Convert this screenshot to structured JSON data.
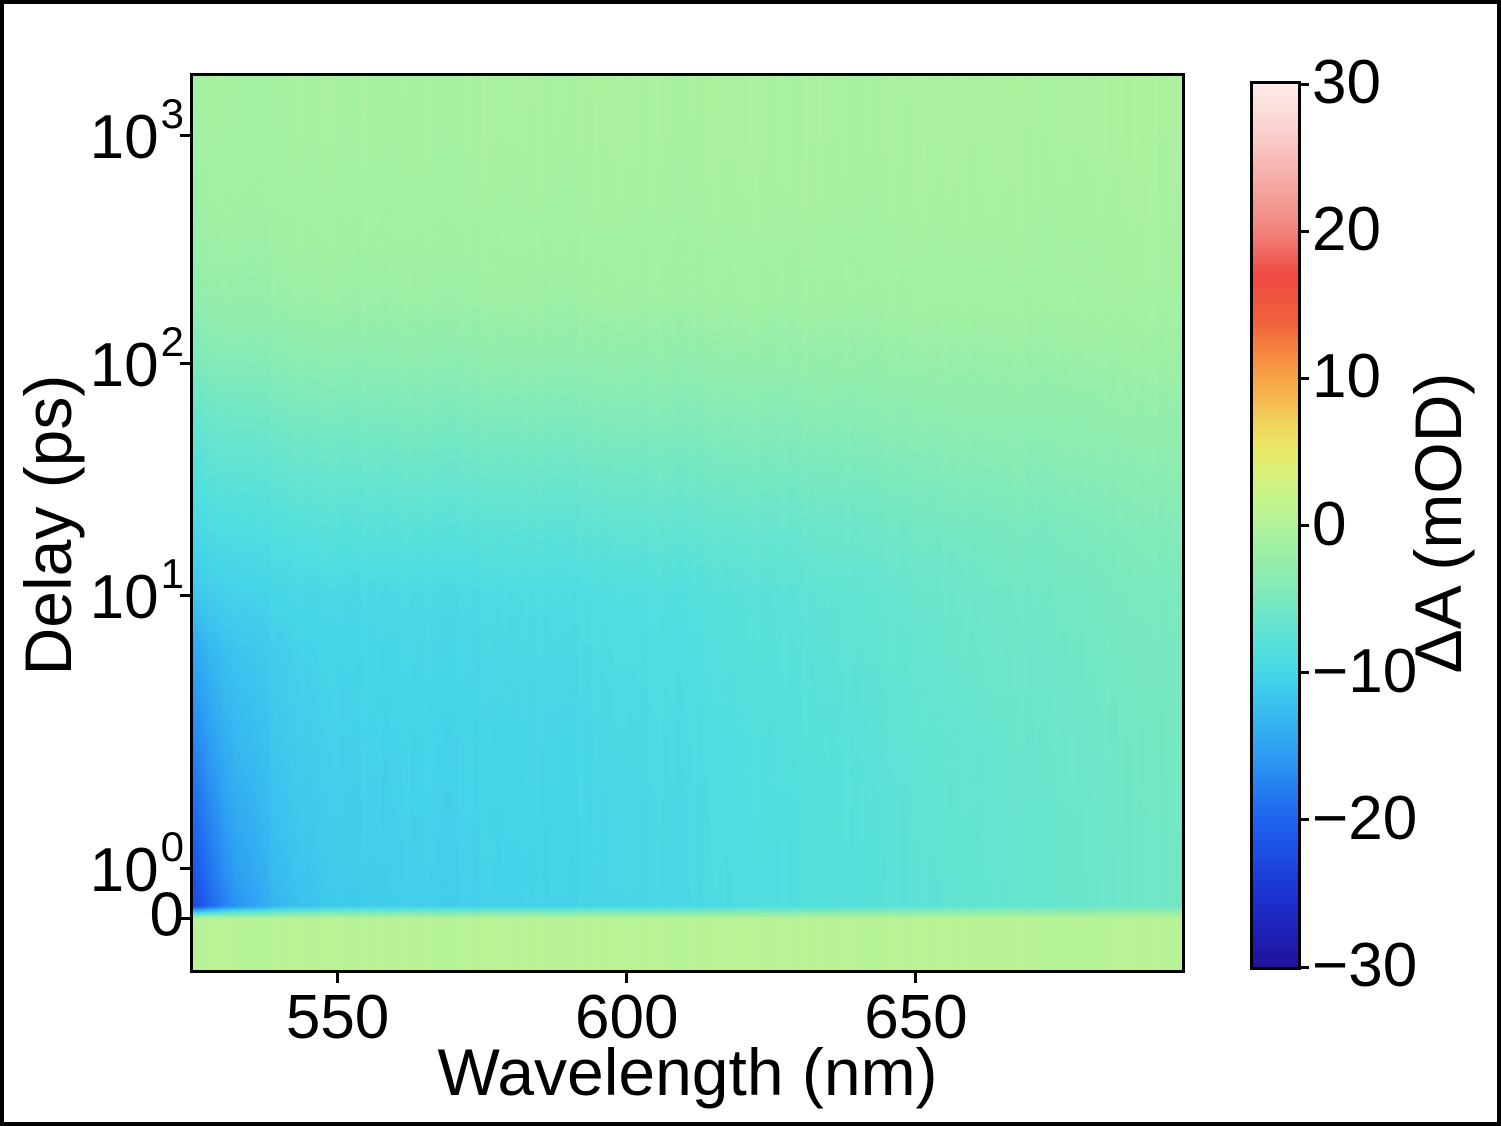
{
  "figure": {
    "kind": "transient-absorption heatmap figure",
    "background": "#ffffff",
    "frame_color": "#000000"
  },
  "axes": {
    "xlabel": "Wavelength (nm)",
    "ylabel": "Delay (ps)",
    "x_ticks": [
      {
        "label": "550",
        "nm": 550
      },
      {
        "label": "600",
        "nm": 600
      },
      {
        "label": "650",
        "nm": 650
      }
    ],
    "y_ticks": [
      {
        "base": "10",
        "exp": "3",
        "ps": 1000
      },
      {
        "base": "10",
        "exp": "2",
        "ps": 100
      },
      {
        "base": "10",
        "exp": "1",
        "ps": 10
      },
      {
        "base": "10",
        "exp": "0",
        "ps": 1
      },
      {
        "label": "0",
        "ps": 0
      }
    ]
  },
  "colorbar": {
    "label": "ΔA (mOD)",
    "min": -30,
    "max": 30,
    "ticks": [
      {
        "label": "30",
        "v": 30
      },
      {
        "label": "20",
        "v": 20
      },
      {
        "label": "10",
        "v": 10
      },
      {
        "label": "0",
        "v": 0
      },
      {
        "label": "−10",
        "v": -10
      },
      {
        "label": "−20",
        "v": -20
      },
      {
        "label": "−30",
        "v": -30
      }
    ]
  },
  "chart_data": {
    "type": "heatmap",
    "title": "",
    "xlabel": "Wavelength (nm)",
    "ylabel": "Delay (ps)",
    "colorbar_label": "ΔA (mOD)",
    "x_range_nm": [
      525,
      696
    ],
    "y_scale": "symlog",
    "y_linthresh_ps": 1,
    "y_range_ps": [
      -1,
      1860
    ],
    "value_range_mOD": [
      -30,
      30
    ],
    "x_wavelength_nm": [
      525,
      532,
      540,
      550,
      562,
      575,
      590,
      605,
      620,
      640,
      660,
      680,
      696
    ],
    "y_delay_ps": [
      -1,
      0,
      0.25,
      0.7,
      1.5,
      3,
      6,
      10,
      20,
      50,
      100,
      200,
      500,
      1000,
      1860
    ],
    "values_mOD": [
      [
        0.4,
        0.4,
        0.5,
        0.5,
        0.5,
        0.5,
        0.5,
        0.5,
        0.5,
        0.5,
        0.5,
        0.4,
        0.4
      ],
      [
        0.4,
        0.4,
        0.5,
        0.5,
        0.5,
        0.5,
        0.5,
        0.5,
        0.5,
        0.5,
        0.5,
        0.4,
        0.4
      ],
      [
        -22.5,
        -16.5,
        -13.0,
        -11.3,
        -10.8,
        -10.6,
        -10.2,
        -9.8,
        -9.0,
        -8.0,
        -7.0,
        -6.2,
        -5.6
      ],
      [
        -21.5,
        -15.8,
        -12.6,
        -11.1,
        -10.7,
        -10.5,
        -10.1,
        -9.7,
        -9.0,
        -8.0,
        -7.0,
        -6.2,
        -5.6
      ],
      [
        -19.5,
        -14.6,
        -12.0,
        -10.9,
        -10.5,
        -10.3,
        -10.0,
        -9.6,
        -8.9,
        -7.9,
        -6.9,
        -6.1,
        -5.5
      ],
      [
        -17.0,
        -13.2,
        -11.4,
        -10.5,
        -10.2,
        -10.1,
        -9.8,
        -9.4,
        -8.7,
        -7.7,
        -6.7,
        -5.9,
        -5.3
      ],
      [
        -14.5,
        -12.0,
        -10.8,
        -10.1,
        -9.8,
        -9.7,
        -9.4,
        -9.0,
        -8.3,
        -7.3,
        -6.3,
        -5.6,
        -5.0
      ],
      [
        -11.5,
        -10.5,
        -9.9,
        -9.6,
        -9.4,
        -9.3,
        -9.0,
        -8.6,
        -8.0,
        -7.0,
        -6.0,
        -5.3,
        -4.8
      ],
      [
        -9.4,
        -8.8,
        -8.3,
        -7.9,
        -7.7,
        -7.6,
        -7.4,
        -7.0,
        -6.6,
        -5.9,
        -5.2,
        -4.6,
        -4.2
      ],
      [
        -7.0,
        -6.3,
        -5.8,
        -5.4,
        -5.2,
        -5.1,
        -4.9,
        -4.7,
        -4.4,
        -4.0,
        -3.5,
        -3.2,
        -2.9
      ],
      [
        -4.6,
        -4.2,
        -3.8,
        -3.5,
        -3.4,
        -3.3,
        -3.2,
        -3.1,
        -2.9,
        -2.6,
        -2.4,
        -2.1,
        -1.9
      ],
      [
        -2.8,
        -2.5,
        -2.2,
        -2.0,
        -1.9,
        -1.8,
        -1.7,
        -1.6,
        -1.5,
        -1.4,
        -1.2,
        -1.1,
        -1.0
      ],
      [
        -1.7,
        -1.5,
        -1.3,
        -1.2,
        -1.1,
        -1.1,
        -1.0,
        -1.0,
        -0.9,
        -0.9,
        -0.8,
        -0.8,
        -0.7
      ],
      [
        -1.2,
        -1.1,
        -1.0,
        -0.9,
        -0.9,
        -0.8,
        -0.8,
        -0.8,
        -0.7,
        -0.7,
        -0.7,
        -0.6,
        -0.6
      ],
      [
        -1.0,
        -0.9,
        -0.9,
        -0.8,
        -0.8,
        -0.8,
        -0.7,
        -0.7,
        -0.7,
        -0.7,
        -0.6,
        -0.6,
        -0.5
      ]
    ],
    "colormap_stops": [
      [
        -30,
        "#20129b"
      ],
      [
        -25,
        "#1c33d4"
      ],
      [
        -20,
        "#1e64ef"
      ],
      [
        -15,
        "#2fa4f3"
      ],
      [
        -12,
        "#3cc3ee"
      ],
      [
        -10,
        "#47d6e8"
      ],
      [
        -8,
        "#58e1da"
      ],
      [
        -6,
        "#6ee6c9"
      ],
      [
        -4,
        "#86ebb5"
      ],
      [
        -2,
        "#9cefa6"
      ],
      [
        -1,
        "#a5f1a1"
      ],
      [
        0,
        "#b3f29b"
      ],
      [
        1,
        "#bdf392"
      ],
      [
        2,
        "#c7f489"
      ],
      [
        3.5,
        "#d8f07a"
      ],
      [
        5,
        "#e7e967"
      ],
      [
        6.5,
        "#eeda5d"
      ],
      [
        8,
        "#f4c254"
      ],
      [
        10,
        "#f8a346"
      ],
      [
        12,
        "#f5823e"
      ],
      [
        14,
        "#f0603c"
      ],
      [
        17,
        "#ee4a42"
      ],
      [
        20,
        "#f1837d"
      ],
      [
        23,
        "#f5a6a1"
      ],
      [
        26,
        "#f9c8c4"
      ],
      [
        30,
        "#fdecea"
      ]
    ]
  }
}
